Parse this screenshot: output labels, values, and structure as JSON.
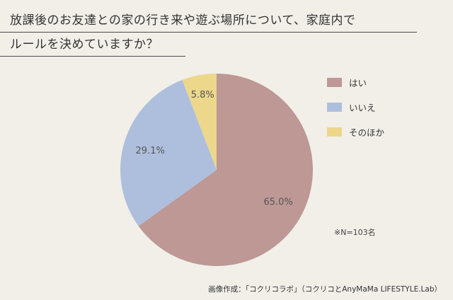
{
  "title": {
    "line1": "放課後のお友達との家の行き来や遊ぶ場所について、家庭内で",
    "line2": "ルールを決めていますか？"
  },
  "chart_data": {
    "type": "pie",
    "categories": [
      "はい",
      "いいえ",
      "そのほか"
    ],
    "values": [
      65.0,
      29.1,
      5.8
    ],
    "value_labels": [
      "65.0%",
      "29.1%",
      "5.8%"
    ],
    "colors": [
      "#bd9895",
      "#aebfdd",
      "#ecd78b"
    ],
    "legend_position": "right",
    "start": "12 o'clock, clockwise"
  },
  "note": "※N=103名",
  "credit": "画像作成：「コクリコラボ」（コクリコとAnyMaMa LIFESTYLE.Lab）"
}
